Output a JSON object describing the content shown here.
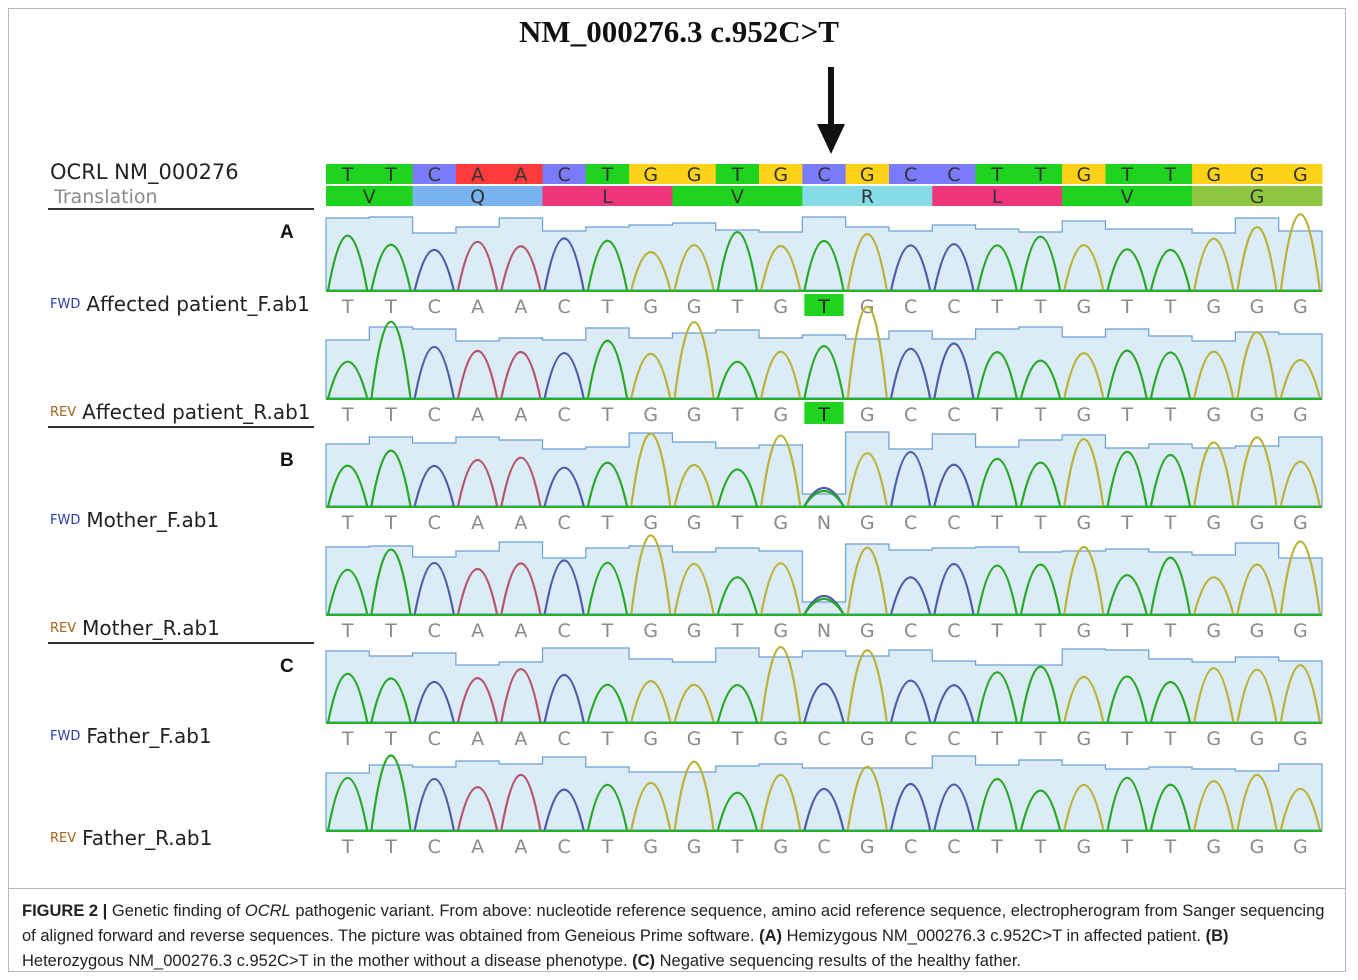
{
  "title": "NM_000276.3 c.952C>T",
  "reference": {
    "name": "OCRL NM_000276",
    "translation_label": "Translation",
    "bases": [
      "T",
      "T",
      "C",
      "A",
      "A",
      "C",
      "T",
      "G",
      "G",
      "T",
      "G",
      "C",
      "G",
      "C",
      "C",
      "T",
      "T",
      "G",
      "T",
      "T",
      "G",
      "G",
      "G"
    ],
    "amino_acids": [
      {
        "aa": "V",
        "color": "#1fd41f",
        "span": [
          0,
          2
        ]
      },
      {
        "aa": "Q",
        "color": "#79b4f0",
        "span": [
          2,
          5
        ]
      },
      {
        "aa": "L",
        "color": "#f0367a",
        "span": [
          5,
          8
        ]
      },
      {
        "aa": "V",
        "color": "#1fd41f",
        "span": [
          8,
          11
        ]
      },
      {
        "aa": "R",
        "color": "#86dce6",
        "span": [
          11,
          14
        ]
      },
      {
        "aa": "L",
        "color": "#f0367a",
        "span": [
          14,
          17
        ]
      },
      {
        "aa": "V",
        "color": "#1fd41f",
        "span": [
          17,
          20
        ]
      },
      {
        "aa": "G",
        "color": "#8ec63f",
        "span": [
          20,
          23
        ]
      }
    ]
  },
  "base_colors": {
    "A": "#ff3b3b",
    "C": "#7b7bff",
    "G": "#ffd21a",
    "T": "#1fd41f"
  },
  "trace_colors": {
    "A": "#b5566a",
    "C": "#4d5fa8",
    "G": "#b9b23a",
    "T": "#27a927",
    "N": "#777777"
  },
  "variant_index": 11,
  "panels": [
    {
      "letter": "A",
      "traces": [
        {
          "dir": "FWD",
          "name": "Affected patient_F.ab1",
          "calls": [
            "T",
            "T",
            "C",
            "A",
            "A",
            "C",
            "T",
            "G",
            "G",
            "T",
            "G",
            "T",
            "G",
            "C",
            "C",
            "T",
            "T",
            "G",
            "T",
            "T",
            "G",
            "G",
            "G"
          ],
          "highlight": 11
        },
        {
          "dir": "REV",
          "name": "Affected patient_R.ab1",
          "calls": [
            "T",
            "T",
            "C",
            "A",
            "A",
            "C",
            "T",
            "G",
            "G",
            "T",
            "G",
            "T",
            "G",
            "C",
            "C",
            "T",
            "T",
            "G",
            "T",
            "T",
            "G",
            "G",
            "G"
          ],
          "highlight": 11
        }
      ]
    },
    {
      "letter": "B",
      "traces": [
        {
          "dir": "FWD",
          "name": "Mother_F.ab1",
          "calls": [
            "T",
            "T",
            "C",
            "A",
            "A",
            "C",
            "T",
            "G",
            "G",
            "T",
            "G",
            "N",
            "G",
            "C",
            "C",
            "T",
            "T",
            "G",
            "T",
            "T",
            "G",
            "G",
            "G"
          ],
          "highlight": -1
        },
        {
          "dir": "REV",
          "name": "Mother_R.ab1",
          "calls": [
            "T",
            "T",
            "C",
            "A",
            "A",
            "C",
            "T",
            "G",
            "G",
            "T",
            "G",
            "N",
            "G",
            "C",
            "C",
            "T",
            "T",
            "G",
            "T",
            "T",
            "G",
            "G",
            "G"
          ],
          "highlight": -1
        }
      ]
    },
    {
      "letter": "C",
      "traces": [
        {
          "dir": "FWD",
          "name": "Father_F.ab1",
          "calls": [
            "T",
            "T",
            "C",
            "A",
            "A",
            "C",
            "T",
            "G",
            "G",
            "T",
            "G",
            "C",
            "G",
            "C",
            "C",
            "T",
            "T",
            "G",
            "T",
            "T",
            "G",
            "G",
            "G"
          ],
          "highlight": -1
        },
        {
          "dir": "REV",
          "name": "Father_R.ab1",
          "calls": [
            "T",
            "T",
            "C",
            "A",
            "A",
            "C",
            "T",
            "G",
            "G",
            "T",
            "G",
            "C",
            "G",
            "C",
            "C",
            "T",
            "T",
            "G",
            "T",
            "T",
            "G",
            "G",
            "G"
          ],
          "highlight": -1
        }
      ]
    }
  ],
  "caption": {
    "fig_label": "FIGURE 2 |",
    "s1": " Genetic finding of ",
    "s1_gene": "OCRL",
    "s2": " pathogenic variant. From above: nucleotide reference sequence, amino acid reference sequence, electropherogram from Sanger sequencing of aligned forward and reverse sequences. The picture was obtained from Geneious Prime software. ",
    "a_label": "(A)",
    "a_text": " Hemizygous NM_000276.3 c.952C>T in affected patient. ",
    "b_label": "(B)",
    "b_text": " Heterozygous NM_000276.3 c.952C>T in the mother without a disease phenotype. ",
    "c_label": "(C)",
    "c_text": " Negative sequencing results of the healthy father."
  }
}
